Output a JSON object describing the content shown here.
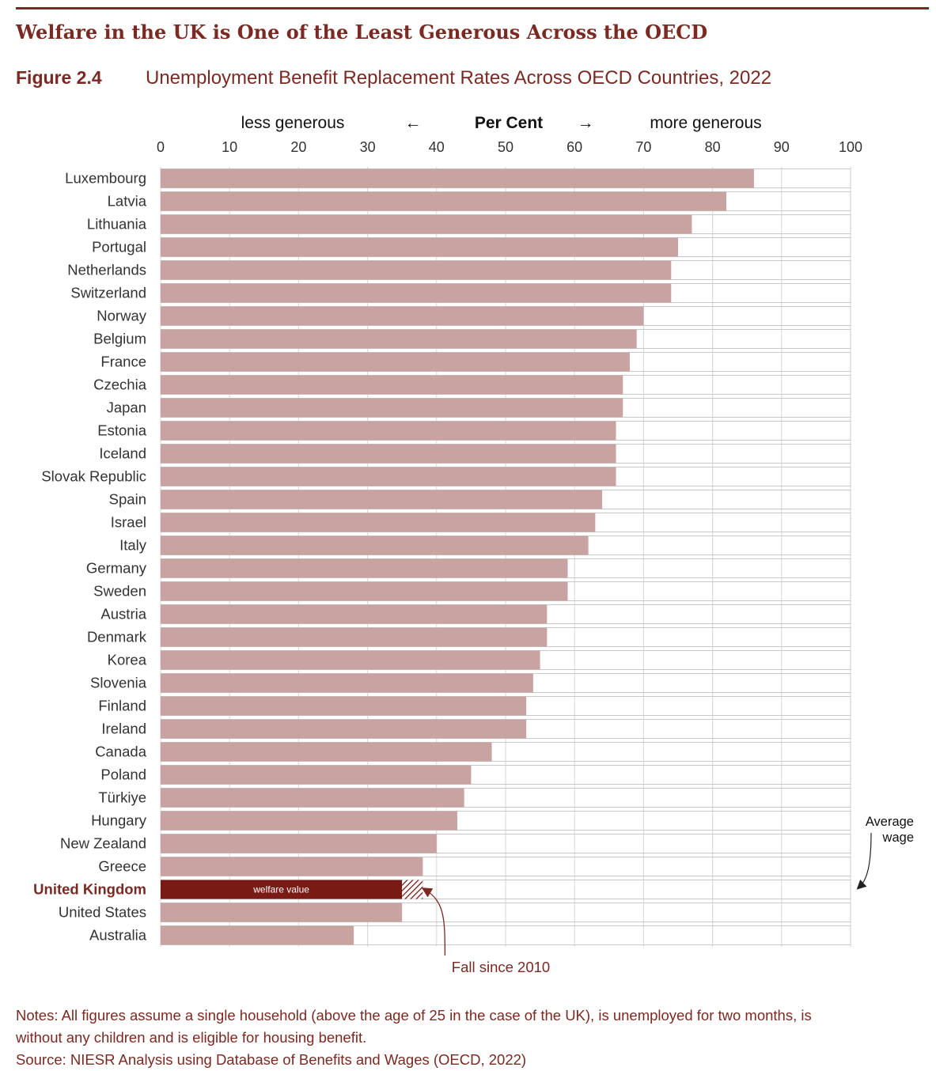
{
  "headline": "Welfare in the UK is One of the Least Generous Across the OECD",
  "figure": {
    "label": "Figure 2.4",
    "title": "Unemployment Benefit Replacement Rates Across OECD Countries, 2022"
  },
  "colors": {
    "accent": "#7a2a22",
    "bar": "#c9a3a1",
    "highlight_bar": "#7a1a15",
    "grid": "#d5d5d5"
  },
  "chart_data": {
    "type": "bar",
    "orientation": "horizontal",
    "axis_header": {
      "left": "less generous",
      "left_arrow": "←",
      "center": "Per Cent",
      "right_arrow": "→",
      "right": "more generous"
    },
    "xlim": [
      0,
      100
    ],
    "ticks": [
      "0",
      "10",
      "20",
      "30",
      "40",
      "50",
      "60",
      "70",
      "80",
      "90",
      "100"
    ],
    "grid": true,
    "categories": [
      "Luxembourg",
      "Latvia",
      "Lithuania",
      "Portugal",
      "Netherlands",
      "Switzerland",
      "Norway",
      "Belgium",
      "France",
      "Czechia",
      "Japan",
      "Estonia",
      "Iceland",
      "Slovak Republic",
      "Spain",
      "Israel",
      "Italy",
      "Germany",
      "Sweden",
      "Austria",
      "Denmark",
      "Korea",
      "Slovenia",
      "Finland",
      "Ireland",
      "Canada",
      "Poland",
      "Türkiye",
      "Hungary",
      "New Zealand",
      "Greece",
      "United Kingdom",
      "United States",
      "Australia"
    ],
    "values": [
      86,
      82,
      77,
      75,
      74,
      74,
      70,
      69,
      68,
      67,
      67,
      66,
      66,
      66,
      64,
      63,
      62,
      59,
      59,
      56,
      56,
      55,
      54,
      53,
      53,
      48,
      45,
      44,
      43,
      40,
      38,
      35,
      35,
      28
    ],
    "highlight": {
      "category": "United Kingdom",
      "value": 35,
      "value_2010": 38,
      "bar_label": "welfare value",
      "fall_label": "Fall since 2010"
    },
    "reference": {
      "label_line1": "Average",
      "label_line2": "wage",
      "value": 100
    }
  },
  "notes": {
    "line1": "Notes: All figures assume a single household (above the age of 25 in the case of the UK), is unemployed for two months, is",
    "line2": "without any children and is eligible for housing benefit.",
    "source": "Source: NIESR Analysis using Database of Benefits and Wages (OECD, 2022)"
  }
}
